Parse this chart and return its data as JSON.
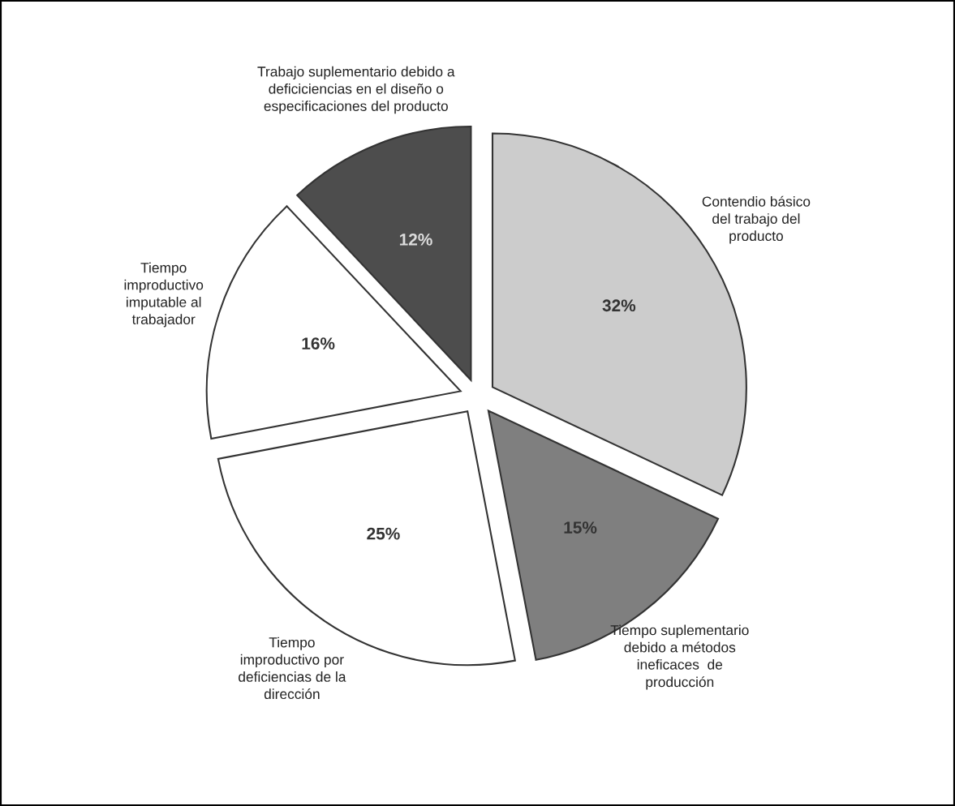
{
  "chart_data": {
    "type": "pie",
    "categories": [
      "Contendio básico\ndel trabajo del\nproducto",
      "Tiempo suplementario\ndebido a métodos\nineficaces  de\nproducción",
      "Tiempo\nimproductivo por\ndeficiencias de la\ndirección",
      "Tiempo\nimproductivo\nimputable al\ntrabajador",
      "Trabajo suplementario debido a\ndeficiciencias en el diseño o\nespecificaciones del producto"
    ],
    "values": [
      32,
      15,
      25,
      16,
      12
    ],
    "value_labels": [
      "32%",
      "15%",
      "25%",
      "16%",
      "12%"
    ],
    "colors": [
      "#cccccc",
      "#7f7f7f",
      "#ffffff",
      "#ffffff",
      "#4d4d4d"
    ]
  }
}
